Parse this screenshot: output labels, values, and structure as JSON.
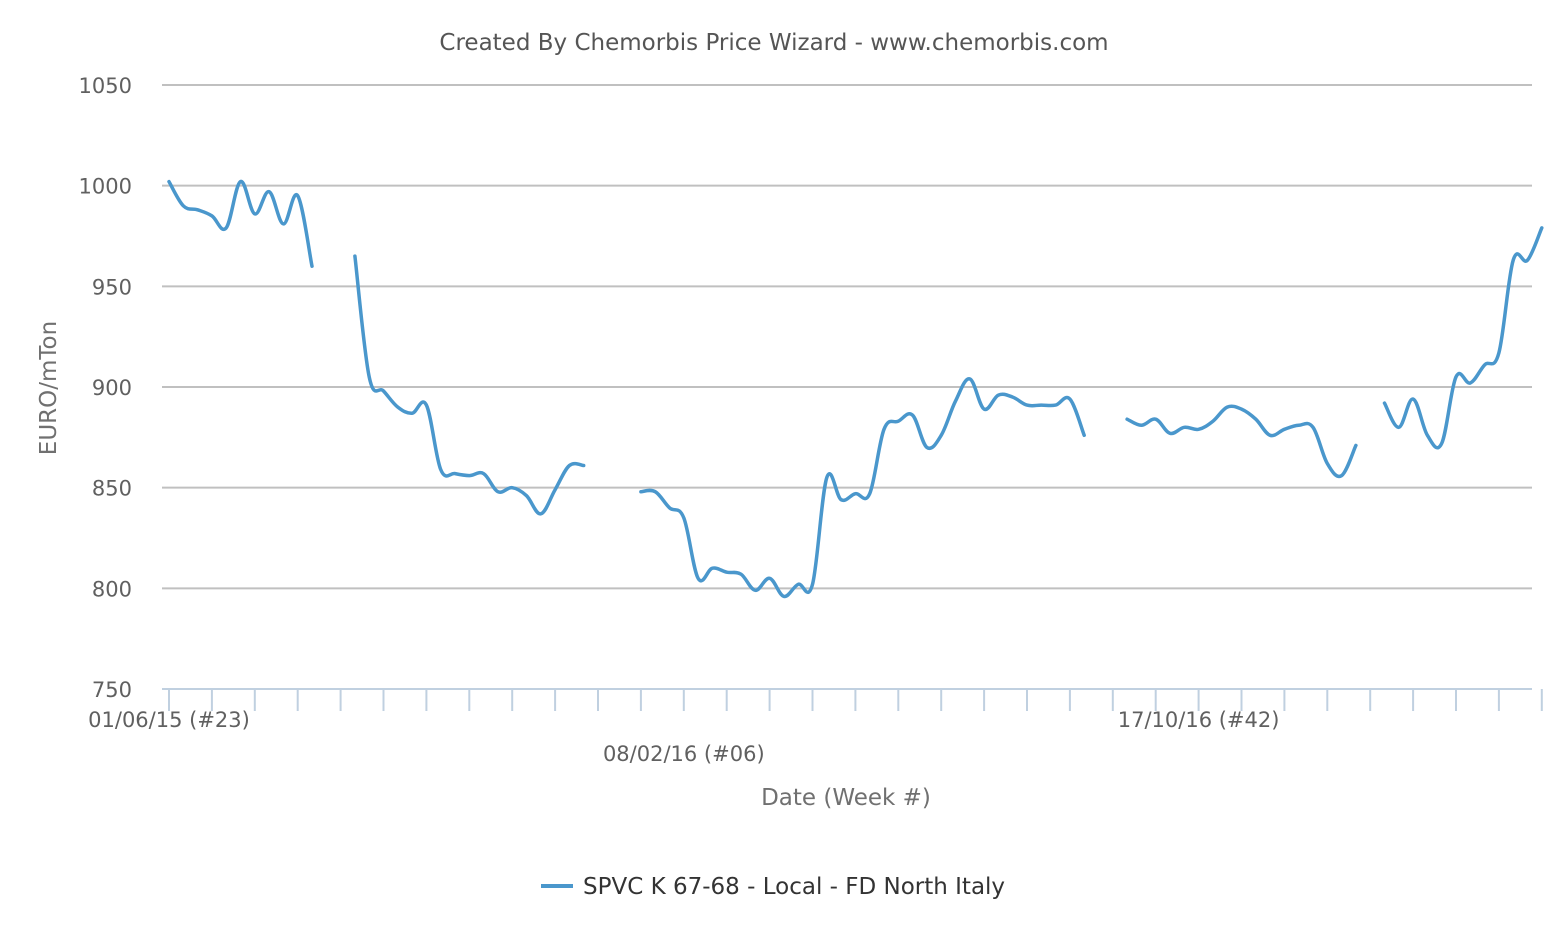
{
  "chart_data": {
    "type": "line",
    "title": "Created By Chemorbis Price Wizard - www.chemorbis.com",
    "xlabel": "Date (Week #)",
    "ylabel": "EURO/mTon",
    "ylim": [
      750,
      1050
    ],
    "yticks": [
      750,
      800,
      850,
      900,
      950,
      1000,
      1050
    ],
    "grid": true,
    "legend_position": "bottom-center",
    "x_tick_labels": [
      {
        "label": "01/06/15 (#23)",
        "week_index": 0,
        "row": 1
      },
      {
        "label": "08/02/16 (#06)",
        "week_index": 36,
        "row": 2
      },
      {
        "label": "17/10/16 (#42)",
        "week_index": 72,
        "row": 1
      }
    ],
    "series": [
      {
        "name": "SPVC K 67-68 - Local - FD North Italy",
        "color": "#4a97cc",
        "segments": [
          [
            [
              0,
              1002
            ],
            [
              1,
              990
            ],
            [
              2,
              988
            ],
            [
              3,
              985
            ],
            [
              4,
              979
            ],
            [
              5,
              1002
            ],
            [
              6,
              986
            ],
            [
              7,
              997
            ],
            [
              8,
              981
            ],
            [
              9,
              995
            ],
            [
              10,
              960
            ]
          ],
          [
            [
              13,
              965
            ],
            [
              14,
              905
            ],
            [
              15,
              898
            ],
            [
              16,
              890
            ],
            [
              17,
              887
            ],
            [
              18,
              891
            ],
            [
              19,
              859
            ],
            [
              20,
              857
            ],
            [
              21,
              856
            ],
            [
              22,
              857
            ],
            [
              23,
              848
            ],
            [
              24,
              850
            ],
            [
              25,
              846
            ],
            [
              26,
              837
            ],
            [
              27,
              849
            ],
            [
              28,
              861
            ],
            [
              29,
              861
            ]
          ],
          [
            [
              33,
              848
            ],
            [
              34,
              848
            ],
            [
              35,
              840
            ],
            [
              36,
              835
            ],
            [
              37,
              805
            ],
            [
              38,
              810
            ],
            [
              39,
              808
            ],
            [
              40,
              807
            ],
            [
              41,
              799
            ],
            [
              42,
              805
            ],
            [
              43,
              796
            ],
            [
              44,
              802
            ],
            [
              45,
              802
            ],
            [
              46,
              855
            ],
            [
              47,
              844
            ],
            [
              48,
              847
            ],
            [
              49,
              847
            ],
            [
              50,
              879
            ],
            [
              51,
              883
            ],
            [
              52,
              886
            ],
            [
              53,
              870
            ],
            [
              54,
              876
            ],
            [
              55,
              893
            ],
            [
              56,
              904
            ],
            [
              57,
              889
            ],
            [
              58,
              896
            ],
            [
              59,
              895
            ],
            [
              60,
              891
            ],
            [
              61,
              891
            ],
            [
              62,
              891
            ],
            [
              63,
              894
            ],
            [
              64,
              876
            ]
          ],
          [
            [
              67,
              884
            ],
            [
              68,
              881
            ],
            [
              69,
              884
            ],
            [
              70,
              877
            ],
            [
              71,
              880
            ],
            [
              72,
              879
            ],
            [
              73,
              883
            ],
            [
              74,
              890
            ],
            [
              75,
              889
            ],
            [
              76,
              884
            ],
            [
              77,
              876
            ],
            [
              78,
              879
            ],
            [
              79,
              881
            ],
            [
              80,
              880
            ],
            [
              81,
              862
            ],
            [
              82,
              856
            ],
            [
              83,
              871
            ]
          ],
          [
            [
              85,
              892
            ],
            [
              86,
              880
            ],
            [
              87,
              894
            ],
            [
              88,
              876
            ],
            [
              89,
              872
            ],
            [
              90,
              905
            ],
            [
              91,
              902
            ],
            [
              92,
              911
            ],
            [
              93,
              917
            ],
            [
              94,
              963
            ],
            [
              95,
              963
            ],
            [
              96,
              979
            ]
          ]
        ]
      }
    ]
  }
}
